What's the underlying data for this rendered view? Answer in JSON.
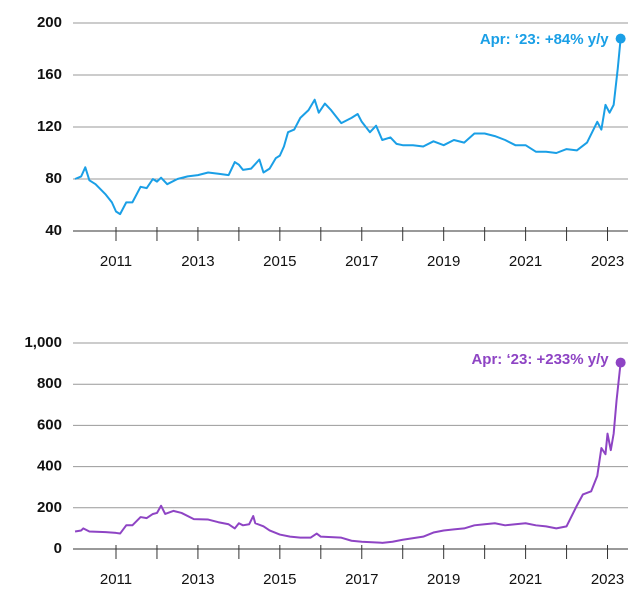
{
  "chart_data": [
    {
      "type": "line",
      "color": "#1a9fe6",
      "annotation": "Apr: ‘23: +84% y/y",
      "x": [
        2010.0,
        2010.15,
        2010.25,
        2010.35,
        2010.5,
        2010.75,
        2010.9,
        2011.0,
        2011.1,
        2011.25,
        2011.4,
        2011.6,
        2011.75,
        2011.9,
        2012.0,
        2012.1,
        2012.25,
        2012.5,
        2012.75,
        2013.0,
        2013.25,
        2013.5,
        2013.75,
        2013.9,
        2014.0,
        2014.1,
        2014.3,
        2014.5,
        2014.6,
        2014.75,
        2014.9,
        2015.0,
        2015.1,
        2015.2,
        2015.35,
        2015.5,
        2015.7,
        2015.85,
        2015.95,
        2016.1,
        2016.25,
        2016.5,
        2016.75,
        2016.9,
        2017.0,
        2017.2,
        2017.35,
        2017.5,
        2017.7,
        2017.85,
        2018.0,
        2018.25,
        2018.5,
        2018.75,
        2019.0,
        2019.25,
        2019.5,
        2019.75,
        2020.0,
        2020.25,
        2020.5,
        2020.75,
        2021.0,
        2021.25,
        2021.5,
        2021.75,
        2022.0,
        2022.25,
        2022.5,
        2022.75,
        2022.85,
        2022.95,
        2023.05,
        2023.15,
        2023.25,
        2023.32
      ],
      "values": [
        80,
        82,
        89,
        79,
        76,
        68,
        62,
        55,
        53,
        62,
        62,
        74,
        73,
        80,
        78,
        81,
        76,
        80,
        82,
        83,
        85,
        84,
        83,
        93,
        91,
        87,
        88,
        95,
        85,
        88,
        96,
        98,
        105,
        116,
        118,
        127,
        133,
        141,
        131,
        138,
        133,
        123,
        127,
        130,
        124,
        116,
        121,
        110,
        112,
        107,
        106,
        106,
        105,
        109,
        106,
        110,
        108,
        115,
        115,
        113,
        110,
        106,
        106,
        101,
        101,
        100,
        103,
        102,
        108,
        124,
        118,
        137,
        131,
        137,
        165,
        188
      ],
      "xlim": [
        2009.95,
        2023.5
      ],
      "xticks": [
        2011,
        2013,
        2015,
        2017,
        2019,
        2021,
        2023
      ],
      "xminor_ticks": [
        2012,
        2014,
        2016,
        2018,
        2020,
        2022
      ],
      "ylim": [
        40,
        200
      ],
      "yticks": [
        40,
        80,
        120,
        160,
        200
      ],
      "grid": true
    },
    {
      "type": "line",
      "color": "#8e44c4",
      "annotation": "Apr: ‘23: +233% y/y",
      "x": [
        2010.0,
        2010.15,
        2010.2,
        2010.35,
        2010.75,
        2011.0,
        2011.1,
        2011.25,
        2011.4,
        2011.6,
        2011.75,
        2011.9,
        2012.0,
        2012.1,
        2012.2,
        2012.4,
        2012.6,
        2012.9,
        2013.25,
        2013.5,
        2013.75,
        2013.9,
        2014.0,
        2014.1,
        2014.25,
        2014.35,
        2014.4,
        2014.6,
        2014.75,
        2015.0,
        2015.25,
        2015.5,
        2015.75,
        2015.9,
        2016.0,
        2016.5,
        2016.75,
        2017.0,
        2017.5,
        2017.75,
        2018.0,
        2018.5,
        2018.75,
        2019.0,
        2019.25,
        2019.5,
        2019.75,
        2020.0,
        2020.25,
        2020.5,
        2020.75,
        2021.0,
        2021.25,
        2021.5,
        2021.75,
        2022.0,
        2022.1,
        2022.25,
        2022.4,
        2022.6,
        2022.75,
        2022.85,
        2022.95,
        2023.0,
        2023.08,
        2023.15,
        2023.22,
        2023.32
      ],
      "values": [
        85,
        90,
        100,
        85,
        82,
        78,
        75,
        115,
        115,
        155,
        150,
        170,
        175,
        210,
        170,
        185,
        175,
        145,
        143,
        130,
        120,
        100,
        125,
        115,
        120,
        160,
        125,
        110,
        90,
        70,
        60,
        55,
        55,
        75,
        60,
        55,
        40,
        35,
        30,
        35,
        45,
        60,
        80,
        90,
        95,
        100,
        115,
        120,
        125,
        115,
        120,
        125,
        115,
        110,
        100,
        110,
        150,
        210,
        265,
        280,
        355,
        490,
        460,
        560,
        480,
        560,
        720,
        905
      ],
      "xlim": [
        2009.95,
        2023.5
      ],
      "xticks": [
        2011,
        2013,
        2015,
        2017,
        2019,
        2021,
        2023
      ],
      "xminor_ticks": [
        2012,
        2014,
        2016,
        2018,
        2020,
        2022
      ],
      "ylim": [
        0,
        1000
      ],
      "yticks": [
        0,
        200,
        400,
        600,
        800,
        {
          "value": 1000,
          "label": "1,000"
        }
      ],
      "grid": true
    }
  ]
}
